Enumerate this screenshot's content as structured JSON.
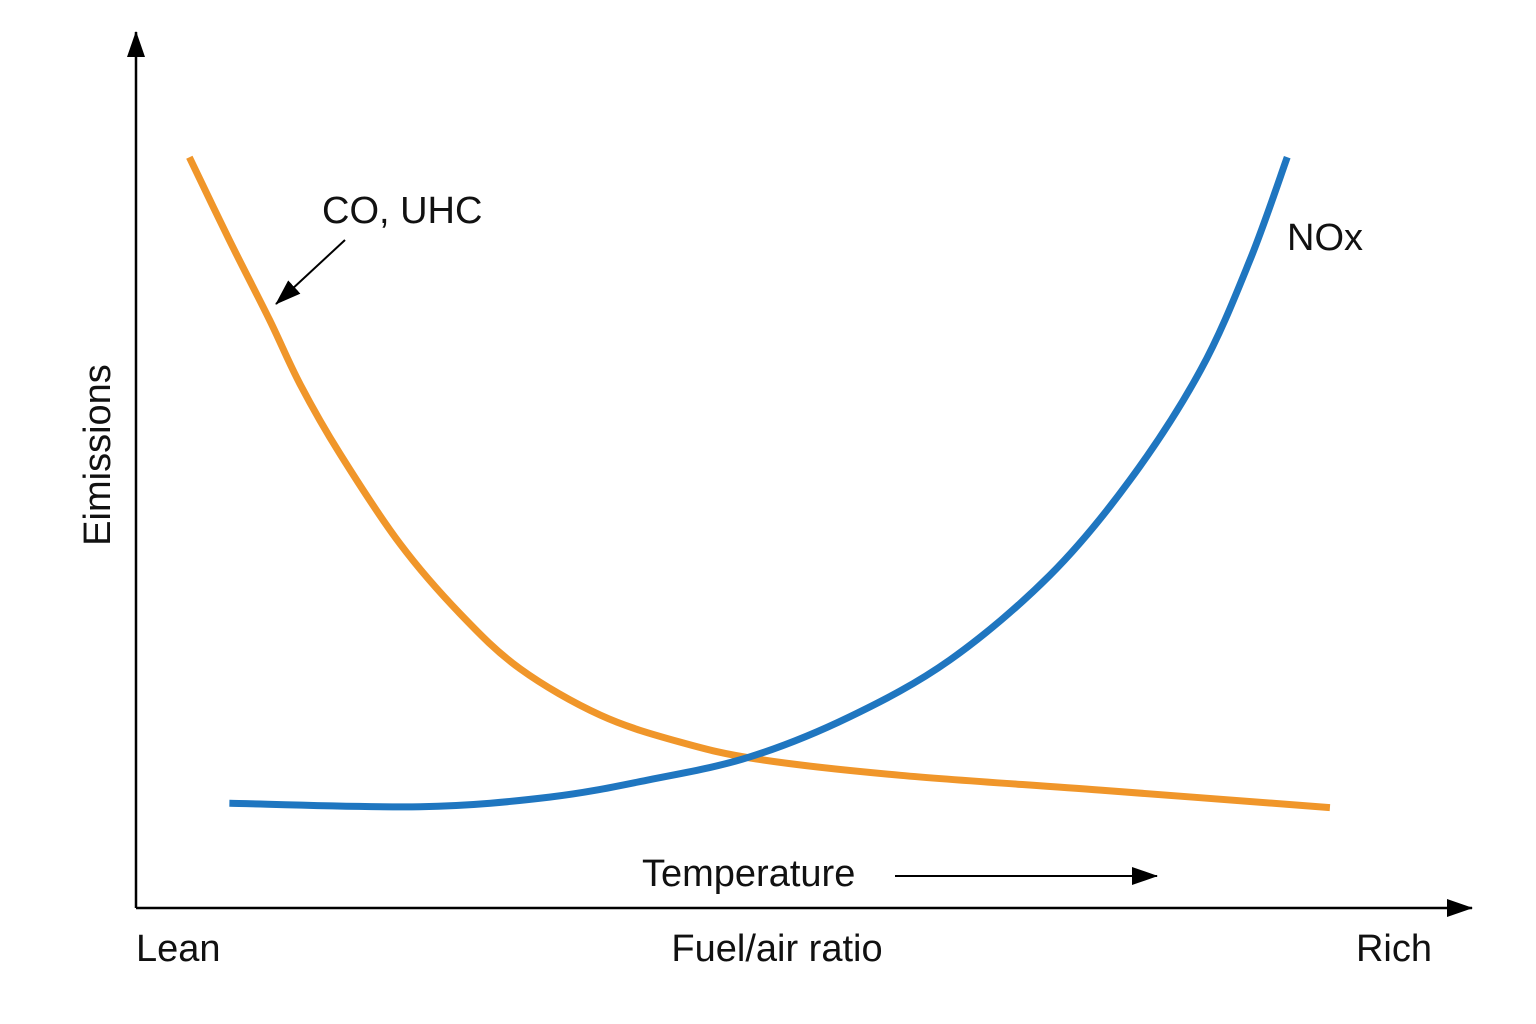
{
  "chart_data": {
    "type": "line",
    "ylabel": "Eimissions",
    "xlabel": "Fuel/air ratio",
    "x_start_label": "Lean",
    "x_end_label": "Rich",
    "annotation": "Temperature",
    "xlim": [
      0,
      100
    ],
    "ylim": [
      0,
      100
    ],
    "series": [
      {
        "name": "CO, UHC",
        "color": "#f0962a",
        "x": [
          4.0,
          7.0,
          10.0,
          12.3,
          15.3,
          19.8,
          24.3,
          28.8,
          34.8,
          40.8,
          46.8,
          57.3,
          72.3,
          89.5
        ],
        "values": [
          86.0,
          76.5,
          67.4,
          60.0,
          52.0,
          41.7,
          33.7,
          27.4,
          22.1,
          19.0,
          17.0,
          15.2,
          13.5,
          11.5
        ]
      },
      {
        "name": "NOx",
        "color": "#1f76c0",
        "x": [
          7.0,
          21.3,
          31.0,
          38.5,
          46.0,
          53.5,
          61.0,
          68.5,
          74.5,
          79.8,
          83.5,
          86.3
        ],
        "values": [
          12.0,
          11.6,
          12.7,
          14.7,
          17.3,
          21.9,
          28.4,
          38.1,
          49.0,
          61.6,
          74.2,
          86.0
        ]
      }
    ]
  }
}
